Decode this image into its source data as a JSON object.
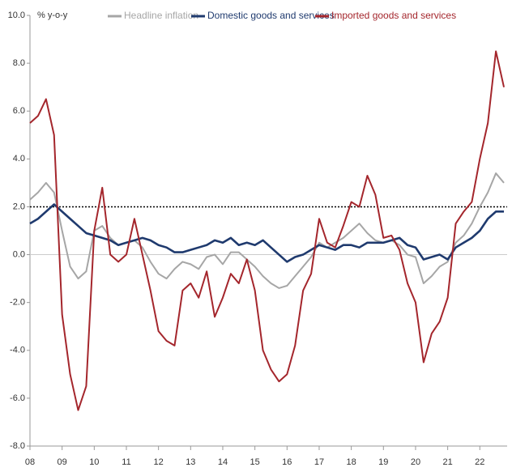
{
  "chart_data": {
    "type": "line",
    "y_label": "% y-o-y",
    "x": [
      2008,
      2008.25,
      2008.5,
      2008.75,
      2009,
      2009.25,
      2009.5,
      2009.75,
      2010,
      2010.25,
      2010.5,
      2010.75,
      2011,
      2011.25,
      2011.5,
      2011.75,
      2012,
      2012.25,
      2012.5,
      2012.75,
      2013,
      2013.25,
      2013.5,
      2013.75,
      2014,
      2014.25,
      2014.5,
      2014.75,
      2015,
      2015.25,
      2015.5,
      2015.75,
      2016,
      2016.25,
      2016.5,
      2016.75,
      2017,
      2017.25,
      2017.5,
      2017.75,
      2018,
      2018.25,
      2018.5,
      2018.75,
      2019,
      2019.25,
      2019.5,
      2019.75,
      2020,
      2020.25,
      2020.5,
      2020.75,
      2021,
      2021.25,
      2021.5,
      2021.75,
      2022,
      2022.25,
      2022.5,
      2022.75
    ],
    "series": [
      {
        "name": "Headline inflation",
        "color": "#a6a6a6",
        "values": [
          2.3,
          2.6,
          3.0,
          2.6,
          1.0,
          -0.5,
          -1.0,
          -0.7,
          1.0,
          1.2,
          0.7,
          0.4,
          0.5,
          0.6,
          0.3,
          -0.3,
          -0.8,
          -1.0,
          -0.6,
          -0.3,
          -0.4,
          -0.6,
          -0.1,
          0.0,
          -0.4,
          0.1,
          0.1,
          -0.2,
          -0.5,
          -0.9,
          -1.2,
          -1.4,
          -1.3,
          -0.9,
          -0.5,
          -0.1,
          0.5,
          0.3,
          0.5,
          0.7,
          1.0,
          1.3,
          0.9,
          0.6,
          0.5,
          0.6,
          0.4,
          0.0,
          -0.1,
          -1.2,
          -0.9,
          -0.5,
          -0.3,
          0.5,
          0.8,
          1.3,
          2.0,
          2.6,
          3.4,
          3.0
        ]
      },
      {
        "name": "Domestic goods and services",
        "color": "#1f3a6e",
        "values": [
          1.3,
          1.5,
          1.8,
          2.1,
          1.8,
          1.5,
          1.2,
          0.9,
          0.8,
          0.7,
          0.6,
          0.4,
          0.5,
          0.6,
          0.7,
          0.6,
          0.4,
          0.3,
          0.1,
          0.1,
          0.2,
          0.3,
          0.4,
          0.6,
          0.5,
          0.7,
          0.4,
          0.5,
          0.4,
          0.6,
          0.3,
          0.0,
          -0.3,
          -0.1,
          0.0,
          0.2,
          0.4,
          0.3,
          0.2,
          0.4,
          0.4,
          0.3,
          0.5,
          0.5,
          0.5,
          0.6,
          0.7,
          0.4,
          0.3,
          -0.2,
          -0.1,
          0.0,
          -0.2,
          0.3,
          0.5,
          0.7,
          1.0,
          1.5,
          1.8,
          1.8
        ]
      },
      {
        "name": "Imported goods and services",
        "color": "#a4262c",
        "values": [
          5.5,
          5.8,
          6.5,
          5.0,
          -2.5,
          -5.0,
          -6.5,
          -5.5,
          1.0,
          2.8,
          0.0,
          -0.3,
          0.0,
          1.5,
          0.0,
          -1.5,
          -3.2,
          -3.6,
          -3.8,
          -1.5,
          -1.2,
          -1.8,
          -0.7,
          -2.6,
          -1.8,
          -0.8,
          -1.2,
          -0.2,
          -1.5,
          -4.0,
          -4.8,
          -5.3,
          -5.0,
          -3.8,
          -1.5,
          -0.8,
          1.5,
          0.5,
          0.3,
          1.2,
          2.2,
          2.0,
          3.3,
          2.5,
          0.7,
          0.8,
          0.2,
          -1.2,
          -2.0,
          -4.5,
          -3.3,
          -2.8,
          -1.8,
          1.3,
          1.8,
          2.2,
          4.0,
          5.5,
          8.5,
          7.0
        ]
      }
    ],
    "reference_line": 2,
    "xlim": [
      2008,
      2022.85
    ],
    "xticks": [
      {
        "value": 2008,
        "label": "08"
      },
      {
        "value": 2009,
        "label": "09"
      },
      {
        "value": 2010,
        "label": "10"
      },
      {
        "value": 2011,
        "label": "11"
      },
      {
        "value": 2012,
        "label": "12"
      },
      {
        "value": 2013,
        "label": "13"
      },
      {
        "value": 2014,
        "label": "14"
      },
      {
        "value": 2015,
        "label": "15"
      },
      {
        "value": 2016,
        "label": "16"
      },
      {
        "value": 2017,
        "label": "17"
      },
      {
        "value": 2018,
        "label": "18"
      },
      {
        "value": 2019,
        "label": "19"
      },
      {
        "value": 2020,
        "label": "20"
      },
      {
        "value": 2021,
        "label": "21"
      },
      {
        "value": 2022,
        "label": "22"
      }
    ],
    "ylim": [
      -8,
      10
    ],
    "yticks": [
      {
        "value": -8,
        "label": "-8.0"
      },
      {
        "value": -6,
        "label": "-6.0"
      },
      {
        "value": -4,
        "label": "-4.0"
      },
      {
        "value": -2,
        "label": "-2.0"
      },
      {
        "value": 0,
        "label": "0.0"
      },
      {
        "value": 2,
        "label": "2.0"
      },
      {
        "value": 4,
        "label": "4.0"
      },
      {
        "value": 6,
        "label": "6.0"
      },
      {
        "value": 8,
        "label": "8.0"
      },
      {
        "value": 10,
        "label": "10.0"
      }
    ]
  }
}
